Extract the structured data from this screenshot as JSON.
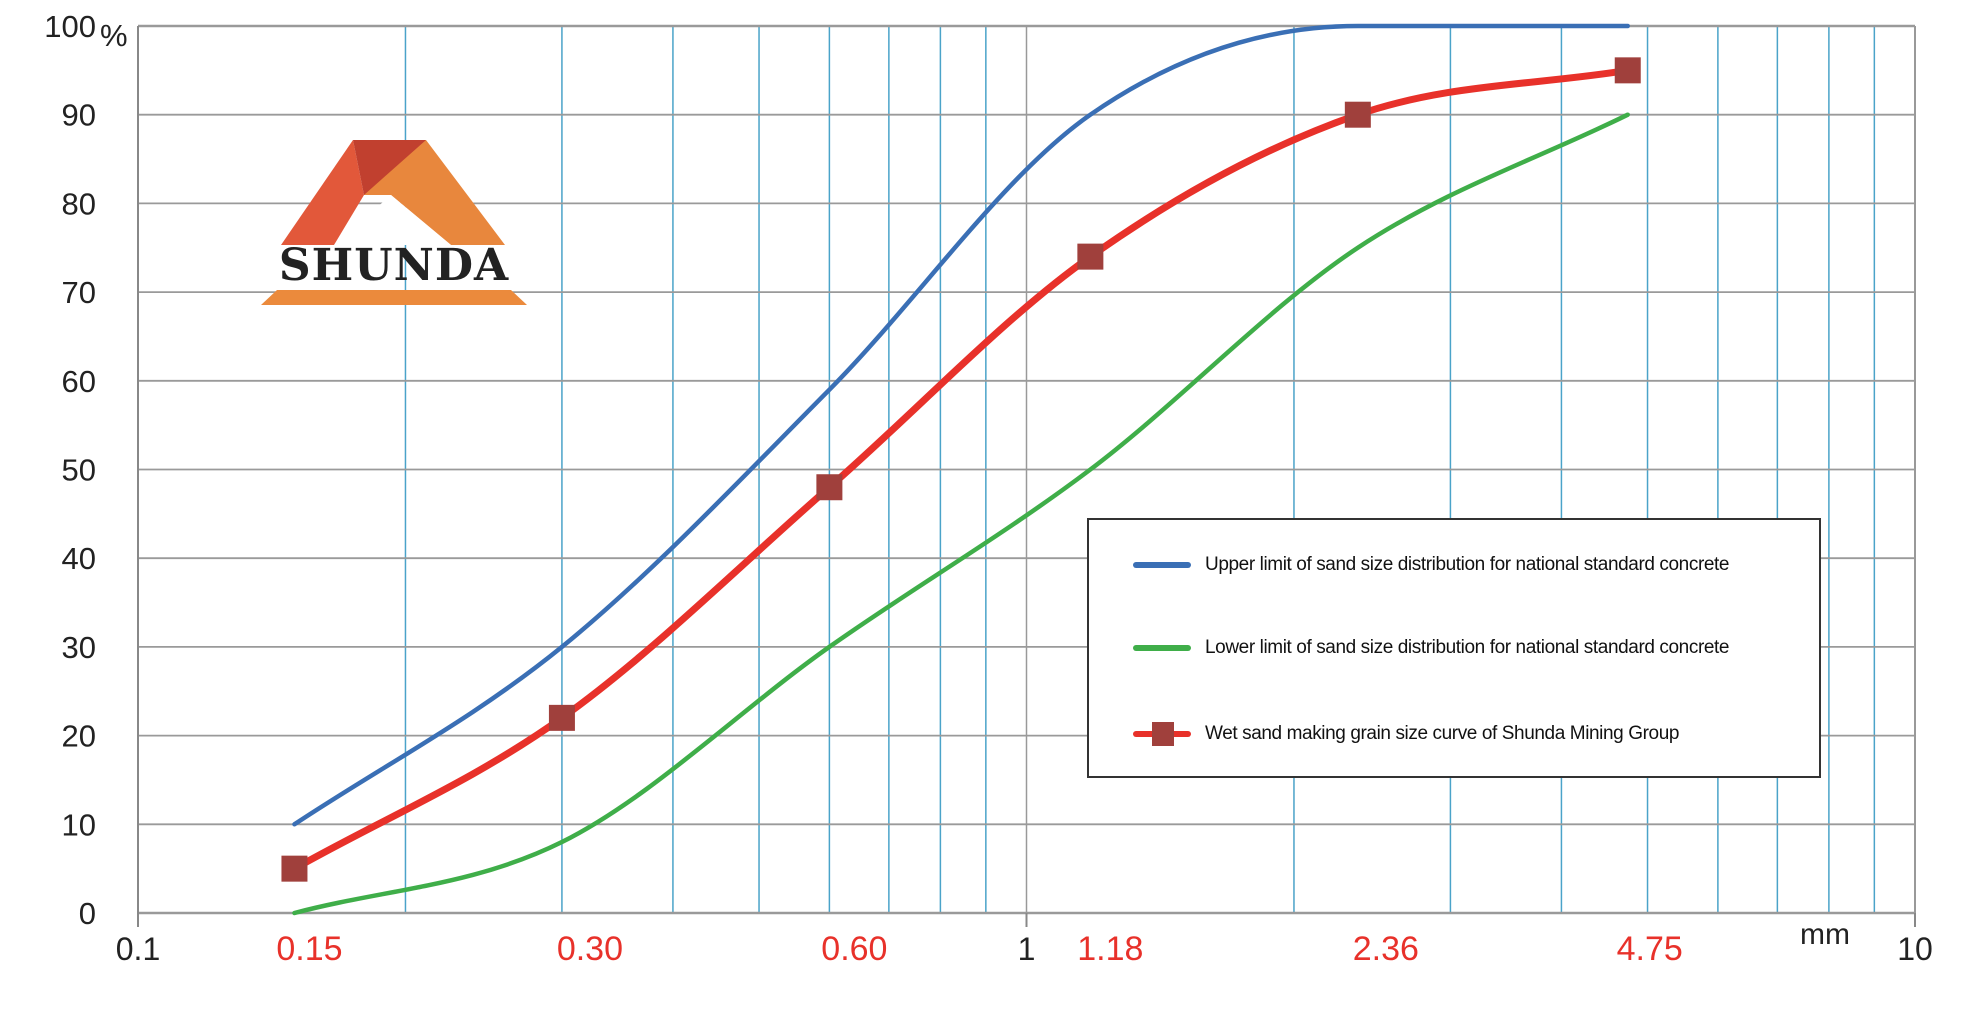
{
  "chart_data": {
    "type": "line",
    "xscale": "log",
    "xlim": [
      0.1,
      10
    ],
    "ylim": [
      0,
      100
    ],
    "xlabel": "mm",
    "ylabel": "%",
    "y_ticks": [
      "0",
      "10",
      "20",
      "30",
      "40",
      "50",
      "60",
      "70",
      "80",
      "90",
      "100"
    ],
    "x_ticks_black": [
      {
        "v": 0.1,
        "label": "0.1"
      },
      {
        "v": 1,
        "label": "1"
      },
      {
        "v": 10,
        "label": "10"
      }
    ],
    "x_ticks_red": [
      {
        "v": 0.15,
        "label": "0.15"
      },
      {
        "v": 0.3,
        "label": "0.30"
      },
      {
        "v": 0.6,
        "label": "0.60"
      },
      {
        "v": 1.18,
        "label": "1.18"
      },
      {
        "v": 2.36,
        "label": "2.36"
      },
      {
        "v": 4.75,
        "label": "4.75"
      }
    ],
    "x": [
      0.15,
      0.3,
      0.6,
      1.18,
      2.36,
      4.75
    ],
    "grid": true,
    "legend_position": "center-right",
    "series": [
      {
        "name": "Upper limit of sand size distribution for national standard concrete",
        "color": "#3a6fb5",
        "values": [
          10,
          30,
          59,
          90,
          100,
          100
        ],
        "markers": false
      },
      {
        "name": "Lower limit of sand size distribution for national standard concrete",
        "color": "#3fae49",
        "values": [
          0,
          8,
          30,
          50,
          75,
          90
        ],
        "markers": false
      },
      {
        "name": "Wet sand making grain size curve of Shunda Mining Group",
        "color": "#e8312a",
        "marker_color": "#a0403c",
        "values": [
          5,
          22,
          48,
          74,
          90,
          95
        ],
        "markers": true
      }
    ]
  },
  "logo": {
    "text": "SHUNDA"
  },
  "colors": {
    "grid_blue": "#4aa3c9",
    "grid_gray": "#999999",
    "tick_red": "#e8312a"
  }
}
